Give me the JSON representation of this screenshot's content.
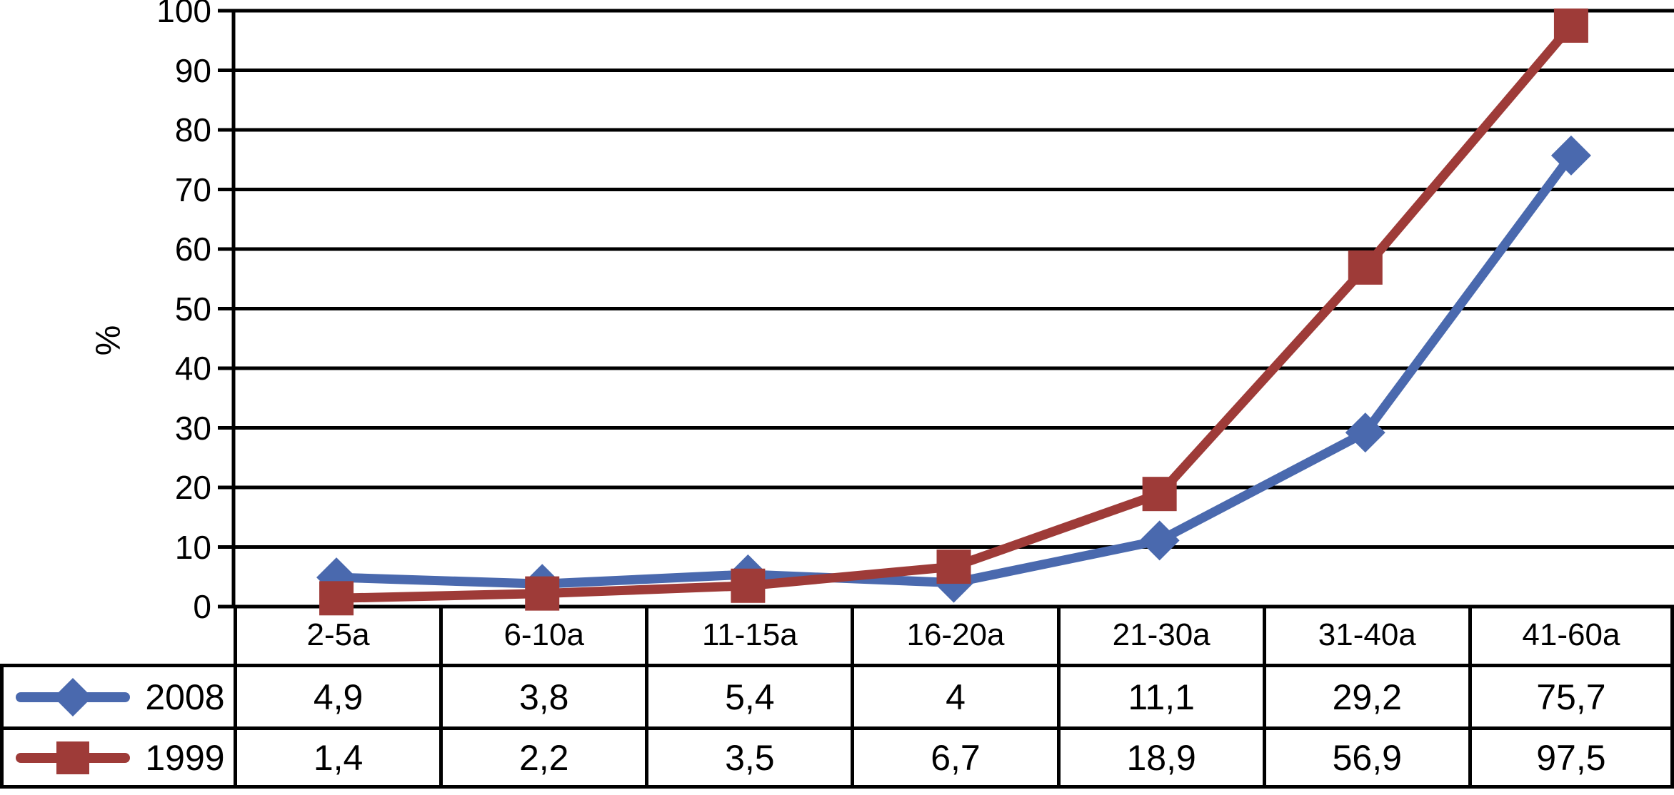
{
  "chart_data": {
    "type": "line",
    "categories": [
      "2-5a",
      "6-10a",
      "11-15a",
      "16-20a",
      "21-30a",
      "31-40a",
      "41-60a"
    ],
    "series": [
      {
        "name": "2008",
        "marker": "diamond",
        "color": "#4A69AE",
        "values": [
          4.9,
          3.8,
          5.4,
          4,
          11.1,
          29.2,
          75.7
        ],
        "display_values": [
          "4,9",
          "3,8",
          "5,4",
          "4",
          "11,1",
          "29,2",
          "75,7"
        ]
      },
      {
        "name": "1999",
        "marker": "square",
        "color": "#9E3B38",
        "values": [
          1.4,
          2.2,
          3.5,
          6.7,
          18.9,
          56.9,
          97.5
        ],
        "display_values": [
          "1,4",
          "2,2",
          "3,5",
          "6,7",
          "18,9",
          "56,9",
          "97,5"
        ]
      }
    ],
    "title": "",
    "xlabel": "",
    "ylabel": "%",
    "ylim": [
      0,
      100
    ],
    "ytick_step": 10,
    "yticks": [
      "100",
      "90",
      "80",
      "70",
      "60",
      "50",
      "40",
      "30",
      "20",
      "10",
      "0"
    ],
    "grid": "horizontal",
    "gridline_color": "#000000",
    "legend_position": "table-left"
  }
}
